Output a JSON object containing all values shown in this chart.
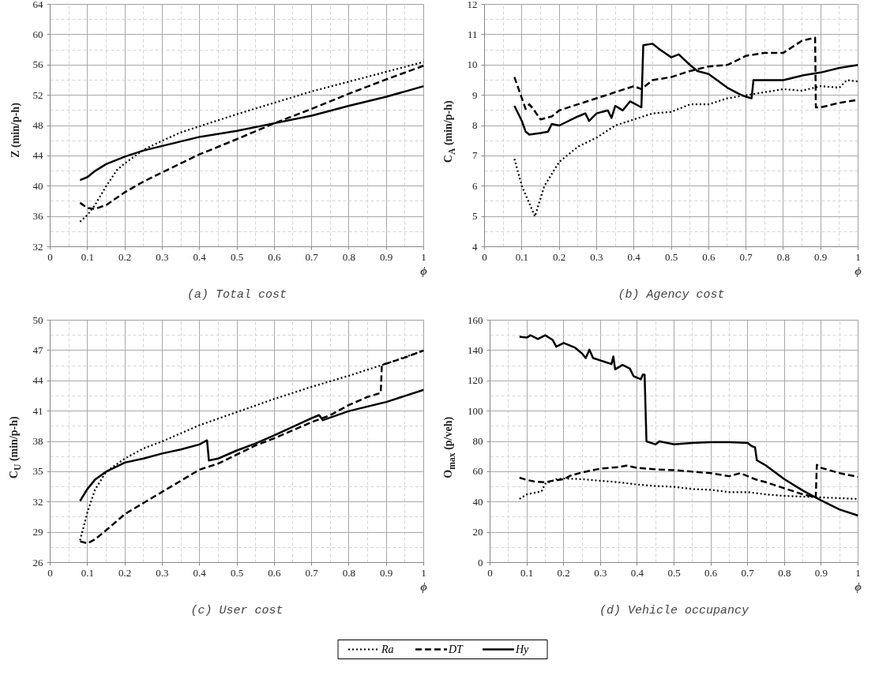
{
  "chart_data": [
    {
      "type": "line",
      "title": "(a) Total cost",
      "xlabel": "ϕ",
      "ylabel": "Z (min/p-h)",
      "xlim": [
        0,
        1
      ],
      "ylim": [
        32,
        64
      ],
      "xticks": [
        0,
        0.1,
        0.2,
        0.3,
        0.4,
        0.5,
        0.6,
        0.7,
        0.8,
        0.9,
        1
      ],
      "yticks": [
        32,
        36,
        40,
        44,
        48,
        52,
        56,
        60,
        64
      ],
      "grid": true,
      "legend": "bottom",
      "series": [
        {
          "name": "Ra",
          "color": "#000000",
          "line_style": "dotted",
          "x": [
            0.08,
            0.1,
            0.12,
            0.15,
            0.18,
            0.2,
            0.25,
            0.3,
            0.35,
            0.4,
            0.5,
            0.6,
            0.7,
            0.8,
            0.9,
            1
          ],
          "values": [
            35.3,
            36.2,
            37.5,
            40,
            42.2,
            43,
            44.8,
            46,
            47.1,
            47.9,
            49.5,
            51,
            52.5,
            53.8,
            55.1,
            56.4
          ]
        },
        {
          "name": "DT",
          "color": "#000000",
          "line_style": "dashed",
          "x": [
            0.08,
            0.1,
            0.12,
            0.15,
            0.2,
            0.25,
            0.3,
            0.4,
            0.5,
            0.6,
            0.7,
            0.8,
            0.9,
            1
          ],
          "values": [
            37.8,
            37.1,
            37,
            37.5,
            39.2,
            40.6,
            41.8,
            44.2,
            46.2,
            48.3,
            50.2,
            52.2,
            54.1,
            55.9
          ]
        },
        {
          "name": "Hy",
          "color": "#000000",
          "line_style": "solid",
          "x": [
            0.08,
            0.1,
            0.12,
            0.15,
            0.2,
            0.25,
            0.3,
            0.4,
            0.5,
            0.6,
            0.7,
            0.8,
            0.9,
            1
          ],
          "values": [
            40.8,
            41.2,
            42,
            42.9,
            43.9,
            44.7,
            45.3,
            46.5,
            47.3,
            48.3,
            49.3,
            50.6,
            51.8,
            53.2
          ]
        }
      ]
    },
    {
      "type": "line",
      "title": "(b) Agency cost",
      "xlabel": "ϕ",
      "ylabel": "C$_{A}$ (min/p-h)",
      "xlim": [
        0,
        1
      ],
      "ylim": [
        4,
        12
      ],
      "xticks": [
        0,
        0.1,
        0.2,
        0.3,
        0.4,
        0.5,
        0.6,
        0.7,
        0.8,
        0.9,
        1
      ],
      "yticks": [
        4,
        5,
        6,
        7,
        8,
        9,
        10,
        11,
        12
      ],
      "grid": true,
      "series": [
        {
          "color": "#000000",
          "line_style": "dotted",
          "x": [
            0.08,
            0.1,
            0.135,
            0.16,
            0.2,
            0.25,
            0.3,
            0.35,
            0.4,
            0.45,
            0.5,
            0.55,
            0.6,
            0.65,
            0.7,
            0.8,
            0.85,
            0.9,
            0.95,
            0.97,
            1
          ],
          "values": [
            6.9,
            6,
            5.0,
            6,
            6.8,
            7.3,
            7.6,
            8.0,
            8.2,
            8.4,
            8.45,
            8.7,
            8.7,
            8.9,
            9.0,
            9.2,
            9.15,
            9.3,
            9.25,
            9.5,
            9.45
          ]
        },
        {
          "color": "#000000",
          "line_style": "dashed",
          "x": [
            0.08,
            0.1,
            0.11,
            0.12,
            0.13,
            0.15,
            0.18,
            0.2,
            0.25,
            0.3,
            0.35,
            0.4,
            0.42,
            0.45,
            0.5,
            0.55,
            0.6,
            0.65,
            0.7,
            0.75,
            0.8,
            0.85,
            0.885,
            0.887,
            0.9,
            0.95,
            1
          ],
          "values": [
            9.6,
            8.9,
            8.55,
            8.7,
            8.55,
            8.2,
            8.3,
            8.5,
            8.7,
            8.9,
            9.1,
            9.3,
            9.2,
            9.5,
            9.6,
            9.8,
            9.95,
            10.0,
            10.3,
            10.4,
            10.4,
            10.8,
            10.9,
            8.6,
            8.6,
            8.75,
            8.85
          ]
        },
        {
          "color": "#000000",
          "line_style": "solid",
          "x": [
            0.08,
            0.1,
            0.11,
            0.12,
            0.15,
            0.17,
            0.18,
            0.2,
            0.25,
            0.27,
            0.28,
            0.3,
            0.33,
            0.34,
            0.35,
            0.37,
            0.39,
            0.42,
            0.425,
            0.45,
            0.47,
            0.5,
            0.52,
            0.55,
            0.57,
            0.6,
            0.65,
            0.68,
            0.7,
            0.715,
            0.72,
            0.75,
            0.8,
            0.85,
            0.9,
            0.95,
            1
          ],
          "values": [
            8.65,
            8.15,
            7.8,
            7.7,
            7.75,
            7.8,
            8.05,
            8.0,
            8.3,
            8.4,
            8.15,
            8.4,
            8.5,
            8.25,
            8.65,
            8.5,
            8.8,
            8.6,
            10.65,
            10.7,
            10.5,
            10.25,
            10.35,
            10.0,
            9.8,
            9.7,
            9.25,
            9.05,
            8.95,
            8.9,
            9.5,
            9.5,
            9.5,
            9.65,
            9.75,
            9.9,
            10.0
          ]
        }
      ]
    },
    {
      "type": "line",
      "title": "(c) User cost",
      "xlabel": "ϕ",
      "ylabel": "C$_{U}$ (min/p-h)",
      "xlim": [
        0,
        1
      ],
      "ylim": [
        26,
        50
      ],
      "xticks": [
        0,
        0.1,
        0.2,
        0.3,
        0.4,
        0.5,
        0.6,
        0.7,
        0.8,
        0.9,
        1
      ],
      "yticks": [
        26,
        29,
        32,
        35,
        38,
        41,
        44,
        47,
        50
      ],
      "grid": true,
      "series": [
        {
          "color": "#000000",
          "line_style": "dotted",
          "x": [
            0.08,
            0.1,
            0.12,
            0.15,
            0.2,
            0.25,
            0.3,
            0.4,
            0.5,
            0.6,
            0.7,
            0.8,
            0.9,
            1
          ],
          "values": [
            28.2,
            31,
            33.2,
            35,
            36.3,
            37.3,
            38,
            39.6,
            40.9,
            42.2,
            43.4,
            44.5,
            45.7,
            47
          ]
        },
        {
          "color": "#000000",
          "line_style": "dashed",
          "x": [
            0.08,
            0.1,
            0.12,
            0.15,
            0.2,
            0.25,
            0.3,
            0.35,
            0.4,
            0.45,
            0.5,
            0.55,
            0.6,
            0.7,
            0.75,
            0.8,
            0.85,
            0.885,
            0.888,
            0.9,
            0.95,
            1
          ],
          "values": [
            28.1,
            27.9,
            28.3,
            29.2,
            30.8,
            31.9,
            33,
            34.1,
            35.2,
            35.8,
            36.7,
            37.6,
            38.3,
            39.9,
            40.6,
            41.6,
            42.4,
            42.8,
            45.6,
            45.7,
            46.3,
            47
          ]
        },
        {
          "color": "#000000",
          "line_style": "solid",
          "x": [
            0.08,
            0.1,
            0.12,
            0.15,
            0.2,
            0.25,
            0.3,
            0.35,
            0.4,
            0.42,
            0.425,
            0.45,
            0.5,
            0.55,
            0.6,
            0.7,
            0.72,
            0.73,
            0.8,
            0.9,
            1
          ],
          "values": [
            32.1,
            33.3,
            34.2,
            35,
            35.9,
            36.3,
            36.8,
            37.2,
            37.7,
            38.1,
            36.1,
            36.3,
            37.1,
            37.8,
            38.6,
            40.3,
            40.6,
            40.1,
            41,
            41.9,
            43.1
          ]
        }
      ]
    },
    {
      "type": "line",
      "title": "(d) Vehicle occupancy",
      "xlabel": "ϕ",
      "ylabel": "O$_{max}$ (p/veh)",
      "xlim": [
        0,
        1
      ],
      "ylim": [
        0,
        160
      ],
      "xticks": [
        0,
        0.1,
        0.2,
        0.3,
        0.4,
        0.5,
        0.6,
        0.7,
        0.8,
        0.9,
        1
      ],
      "yticks": [
        0,
        20,
        40,
        60,
        80,
        100,
        120,
        140,
        160
      ],
      "grid": true,
      "series": [
        {
          "color": "#000000",
          "line_style": "dotted",
          "x": [
            0.08,
            0.1,
            0.14,
            0.15,
            0.18,
            0.2,
            0.25,
            0.3,
            0.35,
            0.4,
            0.45,
            0.5,
            0.55,
            0.6,
            0.65,
            0.7,
            0.75,
            0.8,
            0.85,
            0.9,
            0.95,
            1
          ],
          "values": [
            42,
            45,
            47,
            52,
            55,
            55.5,
            55,
            54,
            53,
            51.5,
            50.5,
            50,
            48.5,
            48,
            46.5,
            46.5,
            45,
            44,
            43.5,
            43,
            42.5,
            42
          ]
        },
        {
          "color": "#000000",
          "line_style": "dashed",
          "x": [
            0.08,
            0.1,
            0.12,
            0.15,
            0.17,
            0.2,
            0.22,
            0.25,
            0.3,
            0.35,
            0.37,
            0.4,
            0.45,
            0.5,
            0.55,
            0.6,
            0.65,
            0.68,
            0.72,
            0.75,
            0.8,
            0.85,
            0.885,
            0.888,
            0.9,
            0.95,
            1
          ],
          "values": [
            56,
            54.5,
            53.5,
            53,
            54,
            55,
            57.5,
            59.5,
            62,
            63,
            64,
            62.5,
            61.5,
            61,
            60,
            59,
            57,
            59,
            55,
            53,
            49,
            45,
            43,
            64.5,
            62.5,
            59,
            56.5
          ]
        },
        {
          "color": "#000000",
          "line_style": "solid",
          "x": [
            0.08,
            0.1,
            0.11,
            0.13,
            0.15,
            0.17,
            0.18,
            0.2,
            0.23,
            0.25,
            0.26,
            0.27,
            0.28,
            0.33,
            0.335,
            0.34,
            0.36,
            0.38,
            0.39,
            0.41,
            0.415,
            0.42,
            0.425,
            0.45,
            0.46,
            0.5,
            0.55,
            0.6,
            0.65,
            0.7,
            0.71,
            0.72,
            0.725,
            0.75,
            0.8,
            0.85,
            0.9,
            0.95,
            1
          ],
          "values": [
            149,
            148.5,
            150,
            147.5,
            150,
            147,
            142.5,
            145,
            142,
            138,
            135,
            140.5,
            135,
            131,
            136,
            127.5,
            130.5,
            128,
            123,
            121,
            124,
            124,
            80,
            78,
            80,
            78,
            79,
            79.5,
            79.5,
            79,
            77,
            76,
            67.5,
            64,
            55,
            47.5,
            41,
            35,
            31
          ]
        }
      ]
    }
  ]
}
